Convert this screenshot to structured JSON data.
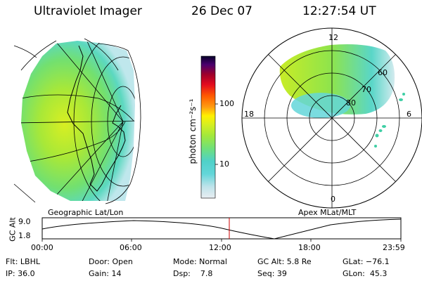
{
  "header": {
    "instrument": "Ultraviolet Imager",
    "date": "26 Dec 07",
    "time": "12:27:54 UT"
  },
  "left_panel": {
    "label": "Geographic Lat/Lon"
  },
  "right_panel": {
    "label": "Apex MLat/MLT",
    "mlt_labels": [
      "12",
      "18",
      "6",
      "0"
    ],
    "mlat_labels": [
      "60",
      "70",
      "80"
    ]
  },
  "colorbar": {
    "unit_label": "photon cm⁻²s⁻¹",
    "tick_labels": [
      "100",
      "10"
    ],
    "scale": "log",
    "colors": [
      "#e9eef2",
      "#bfe3ea",
      "#63d6d9",
      "#4fd1c8",
      "#6fe07a",
      "#a2e83b",
      "#d7ef20",
      "#fff000",
      "#ff9e10",
      "#ff5a00",
      "#e30b1e",
      "#a0002a",
      "#4b006e",
      "#06002a"
    ]
  },
  "altitude_plot": {
    "ylabel": "GC Alt",
    "y_ticks": [
      "9.0",
      "1.8"
    ],
    "x_ticks": [
      "00:00",
      "06:00",
      "12:00",
      "18:00",
      "23:59"
    ],
    "current_time_marker": "12:27:54",
    "marker_color": "#cc0000"
  },
  "status": {
    "filter": "Flt: LBHL",
    "ip": "IP: 36.0",
    "door": "Door: Open",
    "gain": "Gain: 14",
    "mode": "Mode: Normal",
    "dsp": "Dsp:    7.8",
    "gc_alt": "GC Alt: 5.8 Re",
    "seq": "Seq: 39",
    "glat": "GLat: −76.1",
    "glon": "GLon:  45.3"
  }
}
